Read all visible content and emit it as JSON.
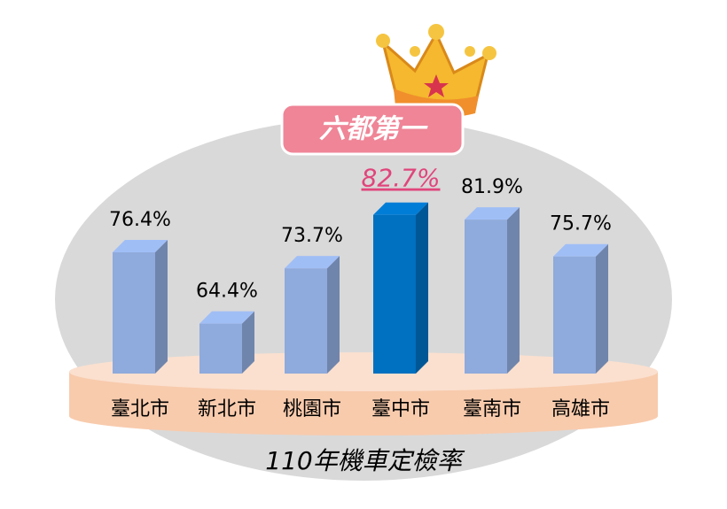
{
  "chart_data": {
    "type": "bar3d",
    "title": "110年機車定檢率",
    "badge": "六都第一",
    "categories": [
      "臺北市",
      "新北市",
      "桃園市",
      "臺中市",
      "臺南市",
      "高雄市"
    ],
    "values": [
      76.4,
      64.4,
      73.7,
      82.7,
      81.9,
      75.7
    ],
    "value_labels": [
      "76.4%",
      "64.4%",
      "73.7%",
      "82.7%",
      "81.9%",
      "75.7%"
    ],
    "colors": [
      "#8faadc",
      "#8faadc",
      "#8faadc",
      "#0070c0",
      "#8faadc",
      "#8faadc"
    ],
    "highlight_index": 3,
    "ylim": [
      56,
      84
    ]
  }
}
